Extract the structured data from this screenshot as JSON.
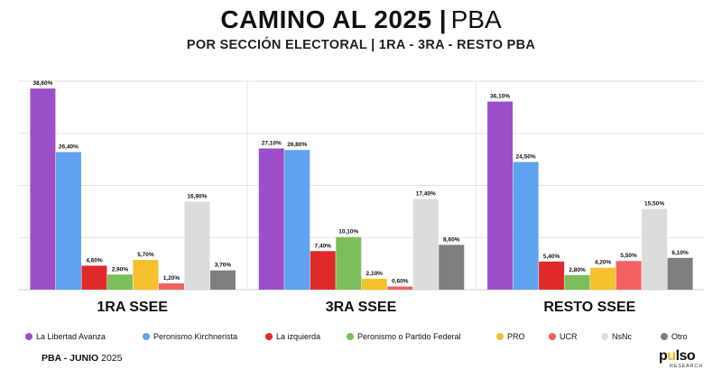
{
  "header": {
    "title_bold": "CAMINO AL 2025 |",
    "title_light": "PBA",
    "subtitle": "POR SECCIÓN ELECTORAL | 1RA - 3RA - RESTO PBA"
  },
  "footer": {
    "left_bold": "PBA -  JUNIO",
    "left_light": "2025",
    "logo_word_a": "p",
    "logo_word_accent": "u",
    "logo_word_b": "lso",
    "logo_sub": "RESEARCH"
  },
  "chart_data": {
    "type": "bar",
    "categories": [
      "1RA SSEE",
      "3RA SSEE",
      "RESTO SSEE"
    ],
    "ylim": [
      0,
      40
    ],
    "grid": true,
    "legend_position": "bottom",
    "series": [
      {
        "name": "La Libertad Avanza",
        "color": "#9b4fc9",
        "values": [
          38.6,
          27.1,
          36.1
        ],
        "labels": [
          "38,60%",
          "27,10%",
          "36,10%"
        ]
      },
      {
        "name": "Peronismo Kirchnerista",
        "color": "#5ea2f0",
        "values": [
          26.4,
          26.8,
          24.5
        ],
        "labels": [
          "26,40%",
          "26,80%",
          "24,50%"
        ]
      },
      {
        "name": "La izquierda",
        "color": "#e02a2a",
        "values": [
          4.6,
          7.4,
          5.4
        ],
        "labels": [
          "4,60%",
          "7,40%",
          "5,40%"
        ]
      },
      {
        "name": "Peronismo o Partido Federal",
        "color": "#7cbf5a",
        "values": [
          2.9,
          10.1,
          2.8
        ],
        "labels": [
          "2,90%",
          "10,10%",
          "2,80%"
        ]
      },
      {
        "name": "PRO",
        "color": "#f5c12e",
        "values": [
          5.7,
          2.1,
          4.2
        ],
        "labels": [
          "5,70%",
          "2,10%",
          "4,20%"
        ]
      },
      {
        "name": "UCR",
        "color": "#f26060",
        "values": [
          1.2,
          0.6,
          5.5
        ],
        "labels": [
          "1,20%",
          "0,60%",
          "5,50%"
        ]
      },
      {
        "name": "NsNc",
        "color": "#dcdcdc",
        "values": [
          16.9,
          17.4,
          15.5
        ],
        "labels": [
          "16,90%",
          "17,40%",
          "15,50%"
        ]
      },
      {
        "name": "Otro",
        "color": "#7f7f7f",
        "values": [
          3.7,
          8.6,
          6.1
        ],
        "labels": [
          "3,70%",
          "8,60%",
          "6,10%"
        ]
      }
    ]
  }
}
